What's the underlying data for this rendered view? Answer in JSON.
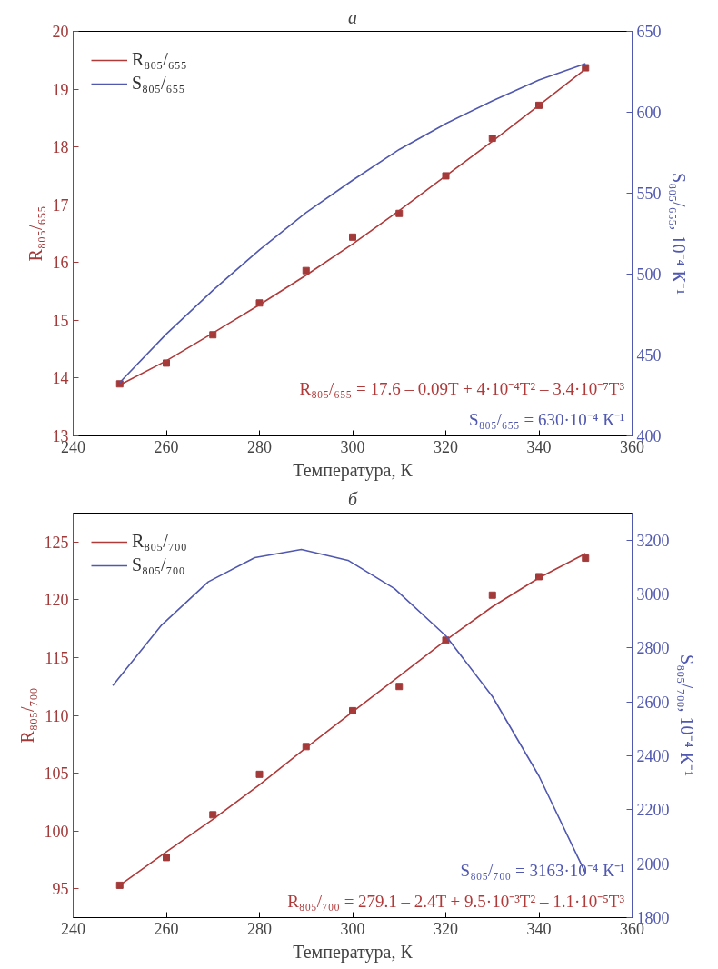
{
  "chart_data": [
    {
      "type": "line",
      "title": "а",
      "xlabel": "Температура, К",
      "ylabel": "R₈₀₅/₆₅₅",
      "y2label": "S₈₀₅/₆₅₅, 10⁻⁴ К⁻¹",
      "xlim": [
        240,
        360
      ],
      "xticks": [
        240,
        260,
        280,
        300,
        320,
        340,
        360
      ],
      "ylim": [
        13,
        20
      ],
      "yticks": [
        13,
        14,
        15,
        16,
        17,
        18,
        19,
        20
      ],
      "y2lim": [
        400,
        650
      ],
      "y2ticks": [
        400,
        450,
        500,
        550,
        600,
        650
      ],
      "legend": "top left",
      "series": [
        {
          "type": "scatter",
          "marker": "square",
          "color": "#a33a3a",
          "x": [
            250,
            260,
            270,
            280,
            290,
            300,
            310,
            320,
            330,
            340,
            350
          ],
          "values": [
            13.9,
            14.26,
            14.75,
            15.3,
            15.86,
            16.44,
            16.85,
            17.5,
            18.15,
            18.72,
            19.37
          ]
        },
        {
          "name": "R₈₀₅/₆₅₅",
          "color": "#b03a3a",
          "x": [
            250,
            260,
            270,
            280,
            290,
            300,
            310,
            320,
            330,
            340,
            350
          ],
          "values": [
            13.88,
            14.3,
            14.78,
            15.27,
            15.78,
            16.32,
            16.9,
            17.5,
            18.1,
            18.72,
            19.35
          ]
        },
        {
          "name": "S₈₀₅/₆₅₅",
          "color": "#5058b0",
          "axis": "y2",
          "x": [
            250,
            260,
            270,
            280,
            290,
            300,
            310,
            320,
            330,
            340,
            350
          ],
          "values": [
            433,
            463,
            490,
            515,
            538,
            558,
            577,
            593,
            607,
            620,
            630
          ]
        }
      ],
      "annotations": [
        "R₈₀₅/₆₅₅ = 17.6 – 0.09T + 4·10⁻⁴T² – 3.4·10⁻⁷T³",
        "S₈₀₅/₆₅₅ = 630·10⁻⁴ К⁻¹"
      ]
    },
    {
      "type": "line",
      "title": "б",
      "xlabel": "Температура, К",
      "ylabel": "R₈₀₅/₇₀₀",
      "y2label": "S₈₀₅/₇₀₀, 10⁻⁴ К⁻¹",
      "xlim": [
        240,
        360
      ],
      "xticks": [
        240,
        260,
        280,
        300,
        320,
        340,
        360
      ],
      "ylim": [
        92.5,
        127.5
      ],
      "yticks": [
        95,
        100,
        105,
        110,
        115,
        120,
        125
      ],
      "y2lim": [
        1800,
        3300
      ],
      "y2ticks": [
        1800,
        2000,
        2200,
        2400,
        2600,
        2800,
        3000,
        3200
      ],
      "legend": "top left",
      "series": [
        {
          "type": "scatter",
          "marker": "square",
          "color": "#a33a3a",
          "x": [
            250,
            260,
            270,
            280,
            290,
            300,
            310,
            320,
            330,
            340,
            350
          ],
          "values": [
            95.3,
            97.7,
            101.4,
            104.9,
            107.3,
            110.4,
            112.5,
            116.5,
            120.4,
            122.0,
            123.6
          ]
        },
        {
          "name": "R₈₀₅/₇₀₀",
          "color": "#b03a3a",
          "x": [
            250,
            260,
            270,
            280,
            290,
            300,
            310,
            320,
            330,
            340,
            350
          ],
          "values": [
            95.3,
            98.2,
            101.0,
            104.0,
            107.2,
            110.3,
            113.4,
            116.5,
            119.4,
            121.9,
            124.0
          ]
        },
        {
          "name": "S₈₀₅/₇₀₀",
          "color": "#5058b0",
          "axis": "y2",
          "x": [
            248.5,
            259,
            269,
            279,
            289,
            299,
            309,
            320,
            330,
            340,
            350
          ],
          "values": [
            2660,
            2885,
            3045,
            3135,
            3165,
            3125,
            3020,
            2845,
            2620,
            2325,
            1965
          ]
        }
      ],
      "annotations": [
        "S₈₀₅/₇₀₀ = 3163·10⁻⁴ К⁻¹",
        "R₈₀₅/₇₀₀ = 279.1 – 2.4T + 9.5·10⁻³T² – 1.1·10⁻⁵T³"
      ]
    }
  ]
}
